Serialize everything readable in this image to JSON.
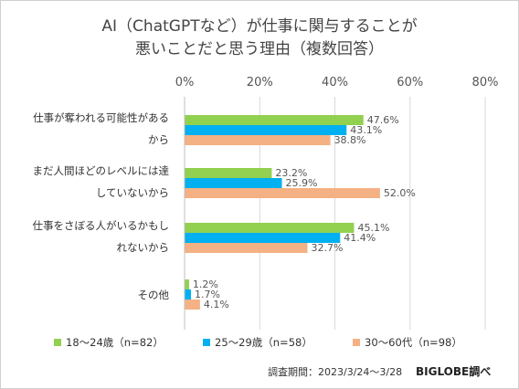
{
  "chart_data": {
    "type": "bar",
    "orientation": "horizontal",
    "title_lines": [
      "AI（ChatGPTなど）が仕事に関与することが",
      "悪いことだと思う理由（複数回答）"
    ],
    "categories": [
      [
        "仕事が奪われる可能性がある",
        "から"
      ],
      [
        "まだ人間ほどのレベルには達",
        "していないから"
      ],
      [
        "仕事をさぼる人がいるかもし",
        "れないから"
      ],
      [
        "その他"
      ]
    ],
    "series": [
      {
        "name": "18～24歳（n=82）",
        "color": "#92d050",
        "values": [
          47.6,
          23.2,
          45.1,
          1.2
        ]
      },
      {
        "name": "25～29歳（n=58）",
        "color": "#00b0f0",
        "values": [
          43.1,
          25.9,
          41.4,
          1.7
        ]
      },
      {
        "name": "30～60代（n=98）",
        "color": "#f4b183",
        "values": [
          38.8,
          52.0,
          32.7,
          4.1
        ]
      }
    ],
    "xlim": [
      0,
      80
    ],
    "xticks": [
      0,
      20,
      40,
      60,
      80
    ],
    "xtick_labels": [
      "0%",
      "20%",
      "40%",
      "60%",
      "80%"
    ],
    "value_format": "percent-1dp",
    "grid": "vertical",
    "legend_position": "bottom"
  },
  "footer": {
    "note": "調査期間：2023/3/24～3/28",
    "brand": "BIGLOBE調べ"
  }
}
